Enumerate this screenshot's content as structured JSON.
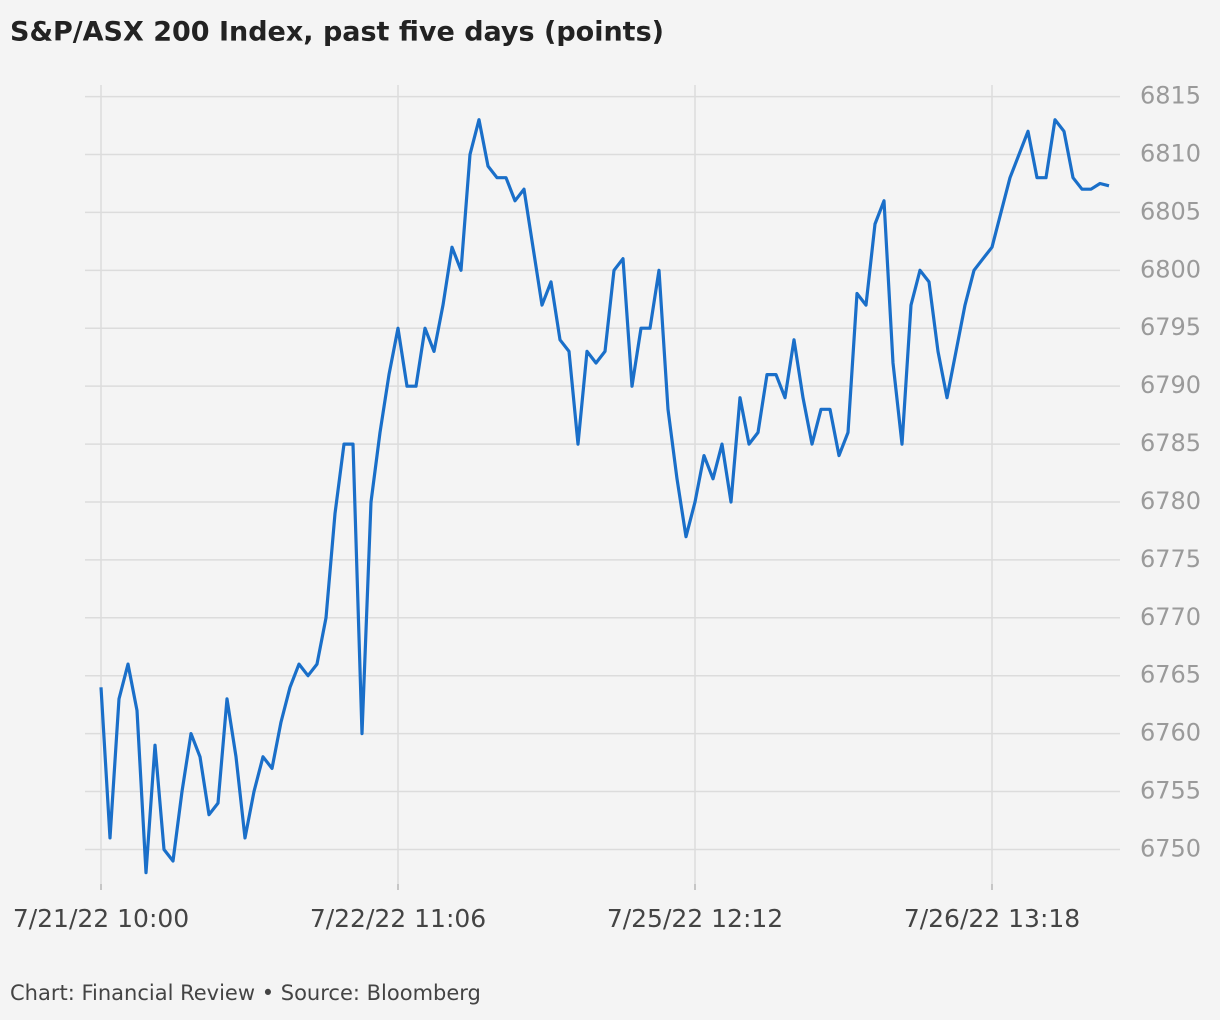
{
  "chart_data": {
    "type": "line",
    "title": "S&P/ASX 200 Index, past five days (points)",
    "source": "Chart: Financial Review • Source: Bloomberg",
    "categories": [
      "7/21/22 10:00",
      null,
      null,
      null,
      null,
      null,
      null,
      null,
      null,
      null,
      null,
      null,
      null,
      null,
      null,
      null,
      null,
      null,
      null,
      null,
      null,
      null,
      null,
      null,
      null,
      null,
      null,
      null,
      null,
      null,
      null,
      null,
      null,
      "7/22/22 11:06",
      null,
      null,
      null,
      null,
      null,
      null,
      null,
      null,
      null,
      null,
      null,
      null,
      null,
      null,
      null,
      null,
      null,
      null,
      null,
      null,
      null,
      null,
      null,
      null,
      null,
      null,
      null,
      null,
      null,
      null,
      null,
      null,
      "7/25/22 12:12",
      null,
      null,
      null,
      null,
      null,
      null,
      null,
      null,
      null,
      null,
      null,
      null,
      null,
      null,
      null,
      null,
      null,
      null,
      null,
      null,
      null,
      null,
      null,
      null,
      null,
      null,
      null,
      null,
      null,
      null,
      null,
      null,
      "7/26/22 13:18",
      null,
      null,
      null,
      null,
      null,
      null,
      null,
      null,
      null,
      null,
      null,
      null,
      null
    ],
    "series": [
      {
        "name": "S&P/ASX 200",
        "color": "#1a6fc9",
        "values": [
          6764,
          6751,
          6763,
          6766,
          6762,
          6748,
          6759,
          6750,
          6749,
          6755,
          6760,
          6758,
          6753,
          6754,
          6763,
          6758,
          6751,
          6755,
          6758,
          6757,
          6761,
          6764,
          6766,
          6765,
          6766,
          6770,
          6779,
          6785,
          6785,
          6760,
          6780,
          6786,
          6791,
          6795,
          6790,
          6790,
          6795,
          6793,
          6797,
          6802,
          6800,
          6810,
          6813,
          6809,
          6808,
          6808,
          6806,
          6807,
          6802,
          6797,
          6799,
          6794,
          6793,
          6785,
          6793,
          6792,
          6793,
          6800,
          6801,
          6790,
          6795,
          6795,
          6800,
          6788,
          6782,
          6777,
          6780,
          6784,
          6782,
          6785,
          6780,
          6789,
          6785,
          6786,
          6791,
          6791,
          6789,
          6794,
          6789,
          6785,
          6788,
          6788,
          6784,
          6786,
          6798,
          6797,
          6804,
          6806,
          6792,
          6785,
          6797,
          6800,
          6799,
          6793,
          6789,
          6793,
          6797,
          6800,
          6801,
          6802,
          6805,
          6808,
          6810,
          6812,
          6808,
          6808,
          6813,
          6812,
          6808,
          6807,
          6807,
          6807.5,
          6807.3
        ]
      }
    ],
    "ylim": [
      6746.5,
      6816
    ],
    "yticks": [
      6750,
      6755,
      6760,
      6765,
      6770,
      6775,
      6780,
      6785,
      6790,
      6795,
      6800,
      6805,
      6810,
      6815
    ],
    "grid": true
  }
}
